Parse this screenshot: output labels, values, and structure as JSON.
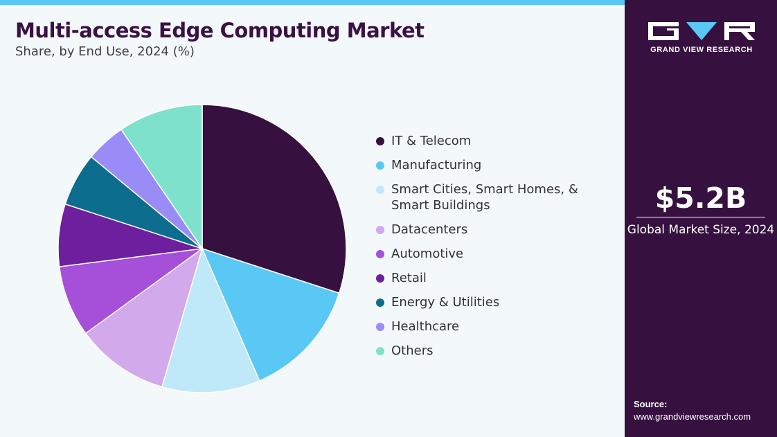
{
  "header": {
    "title": "Multi-access Edge Computing Market",
    "subtitle": "Share, by End Use, 2024 (%)"
  },
  "chart_data": {
    "type": "pie",
    "title": "Multi-access Edge Computing Market",
    "subtitle": "Share, by End Use, 2024 (%)",
    "categories": [
      "IT & Telecom",
      "Manufacturing",
      "Smart Cities, Smart Homes, & Smart Buildings",
      "Datacenters",
      "Automotive",
      "Retail",
      "Energy & Utilities",
      "Healthcare",
      "Others"
    ],
    "values": [
      30.0,
      13.5,
      11.0,
      10.5,
      8.0,
      7.0,
      6.0,
      4.5,
      9.5
    ],
    "colors": [
      "#36113f",
      "#5ac8f5",
      "#bfe8f8",
      "#d2a9ea",
      "#a64fd8",
      "#6e1f9e",
      "#0d6d8e",
      "#9a8cf7",
      "#7ee1cc"
    ],
    "legend_position": "right",
    "start_angle_deg": 0,
    "direction": "clockwise"
  },
  "legend": {
    "items": [
      {
        "label": "IT & Telecom",
        "color": "#36113f"
      },
      {
        "label": "Manufacturing",
        "color": "#5ac8f5"
      },
      {
        "label": "Smart Cities, Smart Homes, & Smart Buildings",
        "color": "#bfe8f8"
      },
      {
        "label": "Datacenters",
        "color": "#d2a9ea"
      },
      {
        "label": "Automotive",
        "color": "#a64fd8"
      },
      {
        "label": "Retail",
        "color": "#6e1f9e"
      },
      {
        "label": "Energy & Utilities",
        "color": "#0d6d8e"
      },
      {
        "label": "Healthcare",
        "color": "#9a8cf7"
      },
      {
        "label": "Others",
        "color": "#7ee1cc"
      }
    ]
  },
  "sidebar": {
    "logo_text": "GRAND VIEW RESEARCH",
    "market_value": "$5.2B",
    "market_label": "Global Market Size, 2024",
    "source_label": "Source:",
    "source_url": "www.grandviewresearch.com"
  },
  "colors": {
    "accent_bar": "#5ac8f5",
    "sidebar_bg": "#36113f",
    "title": "#3a1143",
    "background": "#f3f8fb"
  }
}
